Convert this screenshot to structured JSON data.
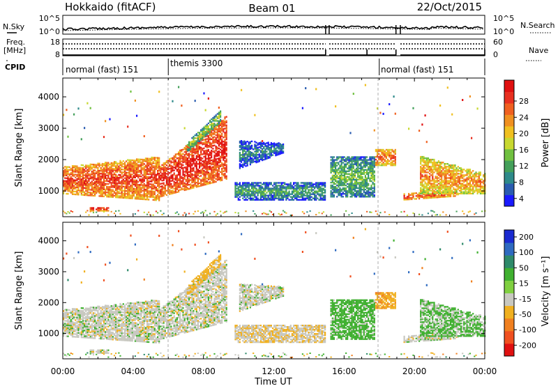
{
  "header": {
    "title": "Hokkaido (fitACF)",
    "beam": "Beam 01",
    "date": "22/Oct/2015"
  },
  "strip_labels": {
    "nsky": "N.Sky",
    "freq": "Freq.",
    "freq_unit": "[MHz]",
    "cpid": "CPID",
    "nsearch": "N.Search",
    "nave": "Nave"
  },
  "strip_ticks": {
    "noise_left_top": "10^5",
    "noise_left_bottom": "10^0",
    "noise_right_top": "10^5",
    "noise_right_bottom": "10^0",
    "freq_top": "18",
    "freq_bottom": "8",
    "nave_top": "60",
    "nave_bottom": "0"
  },
  "cpid_programs": [
    {
      "label": "normal (fast) 151",
      "start_hour": 0
    },
    {
      "label": "themis 3300",
      "start_hour": 6.0
    },
    {
      "label": "normal (fast) 151",
      "start_hour": 18.0
    }
  ],
  "data_gaps_hours": [
    [
      14.95,
      15.15
    ],
    [
      18.95,
      19.2
    ]
  ],
  "chart_data": [
    {
      "type": "heatmap",
      "name": "power",
      "xlabel": "",
      "ylabel": "Slant Range [km]",
      "xlim": [
        0,
        24
      ],
      "ylim": [
        180,
        4600
      ],
      "yticks": [
        1000,
        2000,
        3000,
        4000
      ],
      "colorbar": {
        "label": "Power [dB]",
        "ticks": [
          "28",
          "24",
          "20",
          "16",
          "12",
          "8",
          "4"
        ],
        "range": [
          0,
          30
        ],
        "colors": [
          "#1a1aff",
          "#2a5cb0",
          "#2e8a8a",
          "#44a05a",
          "#70c040",
          "#c8d830",
          "#f0c020",
          "#f09020",
          "#f06020",
          "#e83020",
          "#e01010"
        ]
      }
    },
    {
      "type": "heatmap",
      "name": "velocity",
      "xlabel": "Time UT",
      "ylabel": "Slant Range [km]",
      "xlim": [
        0,
        24
      ],
      "ylim": [
        180,
        4600
      ],
      "yticks": [
        1000,
        2000,
        3000,
        4000
      ],
      "xtick_labels": [
        "00:00",
        "04:00",
        "08:00",
        "12:00",
        "16:00",
        "20:00",
        "00:00"
      ],
      "colorbar": {
        "label": "Velocity [m s⁻¹]",
        "ticks": [
          "200",
          "100",
          "50",
          "15",
          "-15",
          "-50",
          "-100",
          "-200"
        ],
        "colors": [
          "#1a2ad0",
          "#2e6ac0",
          "#2e8a6a",
          "#40b030",
          "#80d040",
          "#c8c8c0",
          "#f0b020",
          "#f08020",
          "#f05020",
          "#e01010"
        ]
      }
    }
  ]
}
